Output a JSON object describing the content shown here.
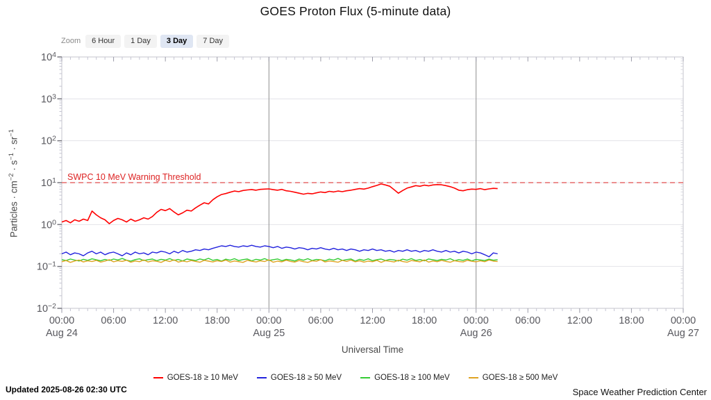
{
  "title": "GOES Proton Flux (5-minute data)",
  "zoom_control": {
    "label": "Zoom",
    "options": [
      {
        "label": "6 Hour",
        "selected": false
      },
      {
        "label": "1 Day",
        "selected": false
      },
      {
        "label": "3 Day",
        "selected": true
      },
      {
        "label": "7 Day",
        "selected": false
      }
    ]
  },
  "footer": {
    "updated": "Updated 2025-08-26 02:30 UTC",
    "credit": "Space Weather Prediction Center"
  },
  "chart_data": {
    "type": "line",
    "title": "GOES Proton Flux (5-minute data)",
    "xlabel": "Universal Time",
    "ylabel_parts": [
      {
        "t": "Particles · cm"
      },
      {
        "sup": "−2"
      },
      {
        "t": " · s"
      },
      {
        "sup": "−1"
      },
      {
        "t": " · sr"
      },
      {
        "sup": "−1"
      }
    ],
    "y_scale": "log",
    "y_range": [
      0.01,
      10000
    ],
    "y_tick_exponents": [
      4,
      3,
      2,
      1,
      0,
      -1,
      -2
    ],
    "x_range_hours": [
      0,
      72
    ],
    "x_ticks": [
      {
        "hour": 0,
        "time": "00:00",
        "date": "Aug 24"
      },
      {
        "hour": 6,
        "time": "06:00"
      },
      {
        "hour": 12,
        "time": "12:00"
      },
      {
        "hour": 18,
        "time": "18:00"
      },
      {
        "hour": 24,
        "time": "00:00",
        "date": "Aug 25"
      },
      {
        "hour": 30,
        "time": "06:00"
      },
      {
        "hour": 36,
        "time": "12:00"
      },
      {
        "hour": 42,
        "time": "18:00"
      },
      {
        "hour": 48,
        "time": "00:00",
        "date": "Aug 26"
      },
      {
        "hour": 54,
        "time": "06:00"
      },
      {
        "hour": 60,
        "time": "12:00"
      },
      {
        "hour": 66,
        "time": "18:00"
      },
      {
        "hour": 72,
        "time": "00:00",
        "date": "Aug 27"
      }
    ],
    "day_boundary_hours": [
      24,
      48
    ],
    "grid": "horizontal-decades",
    "legend_position": "bottom",
    "threshold": {
      "value": 10,
      "label": "SWPC 10 MeV Warning Threshold",
      "label_color": "#dd2222",
      "line_color": "#e66a6a"
    },
    "x_hours": [
      0,
      0.5,
      1,
      1.5,
      2,
      2.5,
      3,
      3.5,
      4,
      4.5,
      5,
      5.5,
      6,
      6.5,
      7,
      7.5,
      8,
      8.5,
      9,
      9.5,
      10,
      10.5,
      11,
      11.5,
      12,
      12.5,
      13,
      13.5,
      14,
      14.5,
      15,
      15.5,
      16,
      16.5,
      17,
      17.5,
      18,
      18.5,
      19,
      19.5,
      20,
      20.5,
      21,
      21.5,
      22,
      22.5,
      23,
      23.5,
      24,
      24.5,
      25,
      25.5,
      26,
      26.5,
      27,
      27.5,
      28,
      28.5,
      29,
      29.5,
      30,
      30.5,
      31,
      31.5,
      32,
      32.5,
      33,
      33.5,
      34,
      34.5,
      35,
      35.5,
      36,
      36.5,
      37,
      37.5,
      38,
      38.5,
      39,
      39.5,
      40,
      40.5,
      41,
      41.5,
      42,
      42.5,
      43,
      43.5,
      44,
      44.5,
      45,
      45.5,
      46,
      46.5,
      47,
      47.5,
      48,
      48.5,
      49,
      49.5,
      50,
      50.5
    ],
    "series": [
      {
        "name": "GOES-18 ≥ 10 MeV",
        "color": "#ff0000",
        "values": [
          1.15,
          1.25,
          1.1,
          1.3,
          1.2,
          1.35,
          1.25,
          2.1,
          1.7,
          1.45,
          1.3,
          1.05,
          1.25,
          1.4,
          1.3,
          1.15,
          1.35,
          1.2,
          1.3,
          1.45,
          1.35,
          1.55,
          1.95,
          2.3,
          2.15,
          2.4,
          2.0,
          1.7,
          1.9,
          2.2,
          2.1,
          2.5,
          2.9,
          3.3,
          3.1,
          3.9,
          4.6,
          5.2,
          5.5,
          5.9,
          6.3,
          6.1,
          6.5,
          6.7,
          6.85,
          6.6,
          6.9,
          7.0,
          7.1,
          6.8,
          6.6,
          6.9,
          6.4,
          6.2,
          5.9,
          5.6,
          5.3,
          5.55,
          5.4,
          5.7,
          6.0,
          5.8,
          6.2,
          6.0,
          6.3,
          6.1,
          6.4,
          6.6,
          6.9,
          7.2,
          7.0,
          7.4,
          8.0,
          8.6,
          9.3,
          8.8,
          8.2,
          6.8,
          5.6,
          6.5,
          7.4,
          7.9,
          8.5,
          8.2,
          8.7,
          8.4,
          8.8,
          9.0,
          8.9,
          8.5,
          8.0,
          7.4,
          6.6,
          6.4,
          6.8,
          7.0,
          6.9,
          7.2,
          6.8,
          7.1,
          7.3,
          7.2
        ]
      },
      {
        "name": "GOES-18 ≥ 50 MeV",
        "color": "#2222dd",
        "values": [
          0.2,
          0.22,
          0.19,
          0.21,
          0.2,
          0.18,
          0.21,
          0.23,
          0.2,
          0.22,
          0.19,
          0.21,
          0.22,
          0.2,
          0.18,
          0.21,
          0.19,
          0.22,
          0.2,
          0.21,
          0.19,
          0.22,
          0.21,
          0.23,
          0.22,
          0.2,
          0.23,
          0.21,
          0.24,
          0.22,
          0.23,
          0.25,
          0.24,
          0.26,
          0.25,
          0.27,
          0.29,
          0.31,
          0.3,
          0.32,
          0.3,
          0.29,
          0.31,
          0.3,
          0.32,
          0.3,
          0.29,
          0.31,
          0.3,
          0.28,
          0.3,
          0.27,
          0.29,
          0.28,
          0.26,
          0.28,
          0.27,
          0.25,
          0.27,
          0.26,
          0.28,
          0.26,
          0.25,
          0.27,
          0.25,
          0.26,
          0.24,
          0.26,
          0.25,
          0.23,
          0.25,
          0.24,
          0.26,
          0.24,
          0.25,
          0.23,
          0.24,
          0.22,
          0.24,
          0.23,
          0.25,
          0.23,
          0.24,
          0.22,
          0.24,
          0.23,
          0.25,
          0.23,
          0.22,
          0.24,
          0.22,
          0.23,
          0.21,
          0.23,
          0.22,
          0.2,
          0.22,
          0.21,
          0.19,
          0.17,
          0.21,
          0.2
        ]
      },
      {
        "name": "GOES-18 ≥ 100 MeV",
        "color": "#33cc33",
        "values": [
          0.145,
          0.138,
          0.15,
          0.142,
          0.135,
          0.148,
          0.14,
          0.152,
          0.144,
          0.136,
          0.147,
          0.139,
          0.15,
          0.143,
          0.155,
          0.141,
          0.134,
          0.146,
          0.152,
          0.138,
          0.145,
          0.15,
          0.137,
          0.148,
          0.142,
          0.154,
          0.139,
          0.147,
          0.135,
          0.15,
          0.144,
          0.138,
          0.151,
          0.143,
          0.156,
          0.14,
          0.147,
          0.134,
          0.149,
          0.141,
          0.153,
          0.138,
          0.146,
          0.15,
          0.136,
          0.148,
          0.142,
          0.154,
          0.139,
          0.145,
          0.151,
          0.137,
          0.148,
          0.143,
          0.135,
          0.15,
          0.141,
          0.153,
          0.138,
          0.147,
          0.144,
          0.136,
          0.149,
          0.142,
          0.155,
          0.139,
          0.146,
          0.151,
          0.134,
          0.148,
          0.14,
          0.152,
          0.137,
          0.145,
          0.15,
          0.138,
          0.147,
          0.143,
          0.135,
          0.149,
          0.141,
          0.154,
          0.139,
          0.146,
          0.136,
          0.151,
          0.144,
          0.138,
          0.148,
          0.142,
          0.153,
          0.137,
          0.145,
          0.14,
          0.15,
          0.136,
          0.147,
          0.143,
          0.138,
          0.149,
          0.141,
          0.144
        ]
      },
      {
        "name": "GOES-18 ≥ 500 MeV",
        "color": "#dfa321",
        "values": [
          0.13,
          0.138,
          0.125,
          0.135,
          0.142,
          0.128,
          0.136,
          0.131,
          0.14,
          0.127,
          0.134,
          0.145,
          0.129,
          0.137,
          0.132,
          0.141,
          0.126,
          0.135,
          0.13,
          0.143,
          0.128,
          0.136,
          0.133,
          0.125,
          0.139,
          0.131,
          0.144,
          0.127,
          0.135,
          0.129,
          0.138,
          0.132,
          0.126,
          0.14,
          0.134,
          0.128,
          0.137,
          0.131,
          0.142,
          0.127,
          0.135,
          0.13,
          0.125,
          0.139,
          0.133,
          0.128,
          0.136,
          0.131,
          0.144,
          0.126,
          0.134,
          0.129,
          0.141,
          0.132,
          0.127,
          0.138,
          0.13,
          0.125,
          0.136,
          0.133,
          0.145,
          0.128,
          0.135,
          0.131,
          0.126,
          0.139,
          0.132,
          0.142,
          0.129,
          0.136,
          0.127,
          0.134,
          0.13,
          0.14,
          0.125,
          0.137,
          0.133,
          0.128,
          0.141,
          0.131,
          0.126,
          0.138,
          0.134,
          0.129,
          0.143,
          0.127,
          0.135,
          0.13,
          0.139,
          0.132,
          0.126,
          0.137,
          0.131,
          0.128,
          0.14,
          0.133,
          0.129,
          0.136,
          0.13,
          0.142,
          0.134,
          0.131
        ]
      }
    ]
  }
}
